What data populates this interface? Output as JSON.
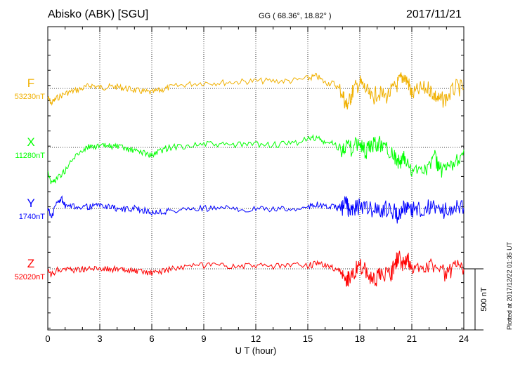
{
  "header": {
    "station": "Abisko (ABK)  [SGU]",
    "coords": "GG ( 68.36°,  18.82° )",
    "date": "2017/11/21"
  },
  "footer": {
    "plotted": "Plotted at 2017/12/22 01:35 UT"
  },
  "chart_data": {
    "type": "line",
    "xlabel": "U T (hour)",
    "xlim": [
      0,
      24
    ],
    "xticks": [
      0,
      3,
      6,
      9,
      12,
      15,
      18,
      21,
      24
    ],
    "grid": true,
    "scale_bar": {
      "label": "500 nT",
      "value": 500
    },
    "series": [
      {
        "name": "F",
        "baseline_label": "53230nT",
        "color": "#f0b000",
        "points": [
          [
            0,
            53120
          ],
          [
            0.2,
            53050
          ],
          [
            0.5,
            53110
          ],
          [
            1,
            53170
          ],
          [
            1.5,
            53200
          ],
          [
            2,
            53230
          ],
          [
            2.5,
            53270
          ],
          [
            3,
            53240
          ],
          [
            3.5,
            53250
          ],
          [
            4,
            53250
          ],
          [
            4.5,
            53230
          ],
          [
            5,
            53210
          ],
          [
            5.5,
            53190
          ],
          [
            6,
            53180
          ],
          [
            6.5,
            53210
          ],
          [
            7,
            53240
          ],
          [
            8,
            53280
          ],
          [
            9,
            53300
          ],
          [
            10,
            53300
          ],
          [
            11,
            53310
          ],
          [
            12,
            53320
          ],
          [
            13,
            53320
          ],
          [
            14,
            53320
          ],
          [
            15,
            53350
          ],
          [
            15.5,
            53380
          ],
          [
            16,
            53300
          ],
          [
            16.5,
            53290
          ],
          [
            17,
            53180
          ],
          [
            17.2,
            53020
          ],
          [
            17.4,
            53080
          ],
          [
            17.6,
            53200
          ],
          [
            18,
            53300
          ],
          [
            18.3,
            53230
          ],
          [
            18.7,
            53100
          ],
          [
            19,
            53180
          ],
          [
            19.5,
            53130
          ],
          [
            20,
            53230
          ],
          [
            20.3,
            53320
          ],
          [
            20.5,
            53380
          ],
          [
            20.8,
            53300
          ],
          [
            21,
            53150
          ],
          [
            21.5,
            53220
          ],
          [
            22,
            53230
          ],
          [
            22.3,
            53150
          ],
          [
            22.6,
            53080
          ],
          [
            23,
            53110
          ],
          [
            23.5,
            53240
          ],
          [
            24,
            53230
          ]
        ]
      },
      {
        "name": "X",
        "baseline_label": "11280nT",
        "color": "#00ff00",
        "points": [
          [
            0,
            11000
          ],
          [
            0.2,
            10850
          ],
          [
            0.5,
            10900
          ],
          [
            1,
            11000
          ],
          [
            1.5,
            11150
          ],
          [
            2,
            11250
          ],
          [
            2.5,
            11300
          ],
          [
            3,
            11290
          ],
          [
            3.5,
            11300
          ],
          [
            4,
            11290
          ],
          [
            4.5,
            11260
          ],
          [
            5,
            11240
          ],
          [
            5.5,
            11220
          ],
          [
            6,
            11180
          ],
          [
            6.5,
            11240
          ],
          [
            7,
            11280
          ],
          [
            8,
            11300
          ],
          [
            9,
            11320
          ],
          [
            10,
            11310
          ],
          [
            11,
            11310
          ],
          [
            12,
            11320
          ],
          [
            13,
            11310
          ],
          [
            14,
            11320
          ],
          [
            15,
            11380
          ],
          [
            15.5,
            11400
          ],
          [
            16,
            11330
          ],
          [
            16.5,
            11330
          ],
          [
            17,
            11230
          ],
          [
            17.2,
            11340
          ],
          [
            17.5,
            11250
          ],
          [
            18,
            11350
          ],
          [
            18.3,
            11220
          ],
          [
            18.7,
            11290
          ],
          [
            19,
            11330
          ],
          [
            19.5,
            11300
          ],
          [
            20,
            11180
          ],
          [
            20.3,
            11080
          ],
          [
            20.6,
            11150
          ],
          [
            21,
            10960
          ],
          [
            21.5,
            11050
          ],
          [
            22,
            11030
          ],
          [
            22.3,
            11200
          ],
          [
            22.6,
            11000
          ],
          [
            23,
            10990
          ],
          [
            23.5,
            11100
          ],
          [
            24,
            11250
          ]
        ]
      },
      {
        "name": "Y",
        "baseline_label": "1740nT",
        "color": "#0000ff",
        "points": [
          [
            0,
            1750
          ],
          [
            0.2,
            1630
          ],
          [
            0.5,
            1800
          ],
          [
            0.8,
            1860
          ],
          [
            1,
            1760
          ],
          [
            1.5,
            1760
          ],
          [
            2,
            1770
          ],
          [
            2.5,
            1760
          ],
          [
            3,
            1780
          ],
          [
            3.5,
            1760
          ],
          [
            4,
            1740
          ],
          [
            4.5,
            1730
          ],
          [
            5,
            1740
          ],
          [
            5.5,
            1720
          ],
          [
            6,
            1690
          ],
          [
            6.5,
            1700
          ],
          [
            7,
            1710
          ],
          [
            8,
            1730
          ],
          [
            9,
            1740
          ],
          [
            10,
            1740
          ],
          [
            11,
            1740
          ],
          [
            12,
            1730
          ],
          [
            13,
            1730
          ],
          [
            14,
            1730
          ],
          [
            15,
            1760
          ],
          [
            15.5,
            1790
          ],
          [
            16,
            1760
          ],
          [
            16.5,
            1760
          ],
          [
            17,
            1740
          ],
          [
            17.2,
            1840
          ],
          [
            17.4,
            1680
          ],
          [
            17.6,
            1720
          ],
          [
            18,
            1770
          ],
          [
            18.5,
            1740
          ],
          [
            19,
            1720
          ],
          [
            19.5,
            1740
          ],
          [
            20,
            1700
          ],
          [
            20.2,
            1630
          ],
          [
            20.4,
            1740
          ],
          [
            20.7,
            1760
          ],
          [
            21,
            1720
          ],
          [
            21.5,
            1740
          ],
          [
            22,
            1750
          ],
          [
            22.5,
            1730
          ],
          [
            23,
            1710
          ],
          [
            23.5,
            1780
          ],
          [
            24,
            1745
          ]
        ]
      },
      {
        "name": "Z",
        "baseline_label": "52020nT",
        "color": "#ff0000",
        "points": [
          [
            0,
            51990
          ],
          [
            0.2,
            51940
          ],
          [
            0.5,
            52000
          ],
          [
            1,
            52030
          ],
          [
            1.5,
            52010
          ],
          [
            2,
            52020
          ],
          [
            2.5,
            52020
          ],
          [
            3,
            52030
          ],
          [
            3.5,
            52020
          ],
          [
            4,
            52010
          ],
          [
            4.5,
            52000
          ],
          [
            5,
            51990
          ],
          [
            5.5,
            51980
          ],
          [
            6,
            51970
          ],
          [
            6.5,
            51990
          ],
          [
            7,
            52020
          ],
          [
            8,
            52040
          ],
          [
            9,
            52060
          ],
          [
            10,
            52050
          ],
          [
            11,
            52050
          ],
          [
            12,
            52060
          ],
          [
            13,
            52050
          ],
          [
            14,
            52060
          ],
          [
            15,
            52060
          ],
          [
            15.5,
            52080
          ],
          [
            16,
            52060
          ],
          [
            16.5,
            52030
          ],
          [
            17,
            51960
          ],
          [
            17.2,
            51860
          ],
          [
            17.4,
            51920
          ],
          [
            17.8,
            52020
          ],
          [
            18,
            52050
          ],
          [
            18.4,
            51990
          ],
          [
            18.8,
            51880
          ],
          [
            19.2,
            51950
          ],
          [
            19.8,
            51950
          ],
          [
            20,
            52060
          ],
          [
            20.2,
            52160
          ],
          [
            20.5,
            52080
          ],
          [
            20.8,
            52120
          ],
          [
            21,
            52000
          ],
          [
            21.5,
            52050
          ],
          [
            22,
            52080
          ],
          [
            22.5,
            52010
          ],
          [
            23,
            51950
          ],
          [
            23.5,
            52040
          ],
          [
            24,
            52020
          ]
        ]
      }
    ]
  }
}
